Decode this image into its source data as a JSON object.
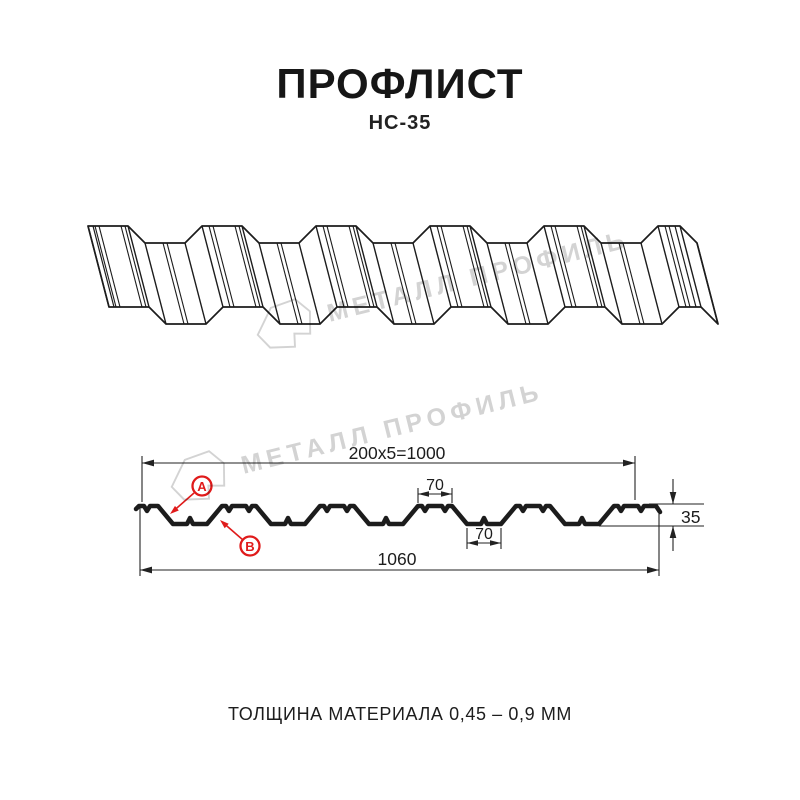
{
  "header": {
    "title": "ПРОФЛИСТ",
    "subtitle": "НС-35"
  },
  "watermark": {
    "text": "МЕТАЛЛ ПРОФИЛЬ",
    "logo": "metal-profil-hexagon-logo"
  },
  "dimensions": {
    "top_width": "200x5=1000",
    "rib_top": "70",
    "rib_bottom": "70",
    "height": "35",
    "total_width": "1060"
  },
  "annotations": {
    "label_a": "А",
    "label_b": "В"
  },
  "footer": {
    "thickness": "ТОЛЩИНА МАТЕРИАЛА 0,45 – 0,9 ММ"
  },
  "colors": {
    "line_black": "#1c1c1c",
    "dim_black": "#222222",
    "accent_red": "#e01b1b",
    "watermark_gray": "#d3d3d3"
  }
}
